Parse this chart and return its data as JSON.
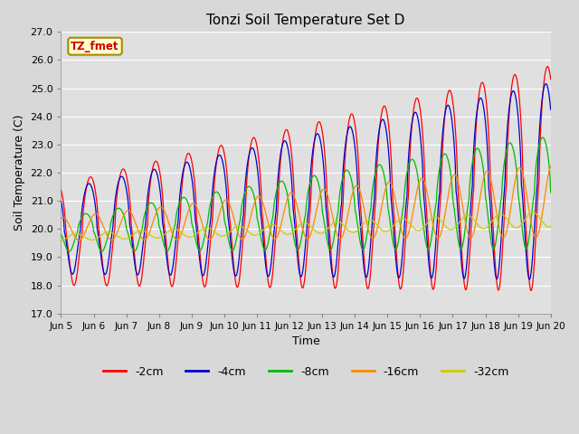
{
  "title": "Tonzi Soil Temperature Set D",
  "xlabel": "Time",
  "ylabel": "Soil Temperature (C)",
  "ylim": [
    17.0,
    27.0
  ],
  "yticks": [
    17.0,
    18.0,
    19.0,
    20.0,
    21.0,
    22.0,
    23.0,
    24.0,
    25.0,
    26.0,
    27.0
  ],
  "fig_bg_color": "#d8d8d8",
  "plot_bg_color": "#e0e0e0",
  "legend_labels": [
    "-2cm",
    "-4cm",
    "-8cm",
    "-16cm",
    "-32cm"
  ],
  "legend_colors": [
    "#ff0000",
    "#0000cc",
    "#00bb00",
    "#ff8800",
    "#cccc00"
  ],
  "annotation_text": "TZ_fmet",
  "annotation_bg": "#ffffcc",
  "annotation_border": "#aa8800",
  "annotation_text_color": "#cc0000",
  "n_points": 720,
  "t_start": 5.0,
  "t_end": 20.0,
  "xtick_positions": [
    5,
    6,
    7,
    8,
    9,
    10,
    11,
    12,
    13,
    14,
    15,
    16,
    17,
    18,
    19,
    20
  ],
  "xtick_labels": [
    "Jun 5",
    "Jun 6",
    "Jun 7",
    "Jun 8",
    "Jun 9",
    "Jun 10",
    "Jun 11",
    "Jun 12",
    "Jun 13",
    "Jun 14",
    "Jun 15",
    "Jun 16",
    "Jun 17",
    "Jun 18",
    "Jun 19",
    "Jun 20"
  ]
}
